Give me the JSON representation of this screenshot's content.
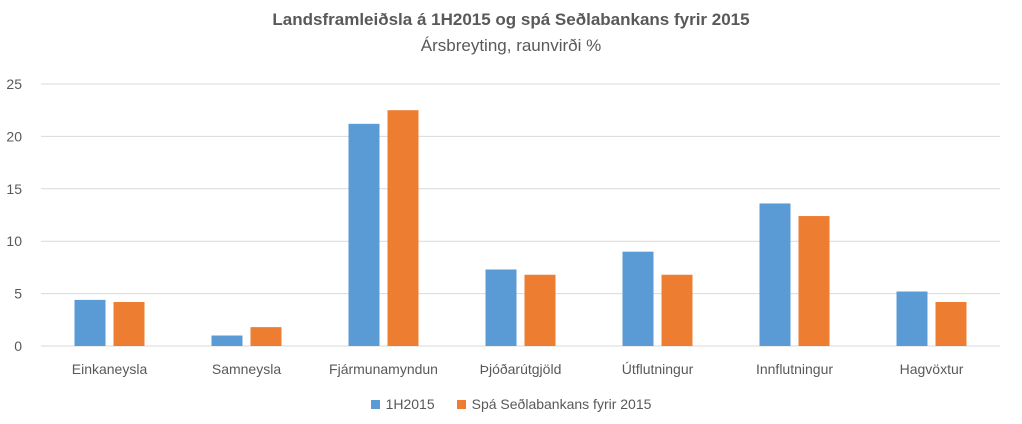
{
  "chart_data": {
    "type": "bar",
    "title": "Landsframleiðsla á 1H2015 og spá Seðlabankans fyrir 2015",
    "subtitle": "Ársbreyting, raunvirði %",
    "xlabel": "",
    "ylabel": "",
    "ylim": [
      0,
      25
    ],
    "yticks": [
      0,
      5,
      10,
      15,
      20,
      25
    ],
    "grid": true,
    "legend_position": "bottom",
    "categories": [
      "Einkaneysla",
      "Samneysla",
      "Fjármunamyndun",
      "Þjóðarútgjöld",
      "Útflutningur",
      "Innflutningur",
      "Hagvöxtur"
    ],
    "series": [
      {
        "name": "1H2015",
        "color": "#5B9BD5",
        "values": [
          4.4,
          1.0,
          21.2,
          7.3,
          9.0,
          13.6,
          5.2
        ]
      },
      {
        "name": "Spá Seðlabankans fyrir 2015",
        "color": "#ED7D31",
        "values": [
          4.2,
          1.8,
          22.5,
          6.8,
          6.8,
          12.4,
          4.2
        ]
      }
    ]
  }
}
